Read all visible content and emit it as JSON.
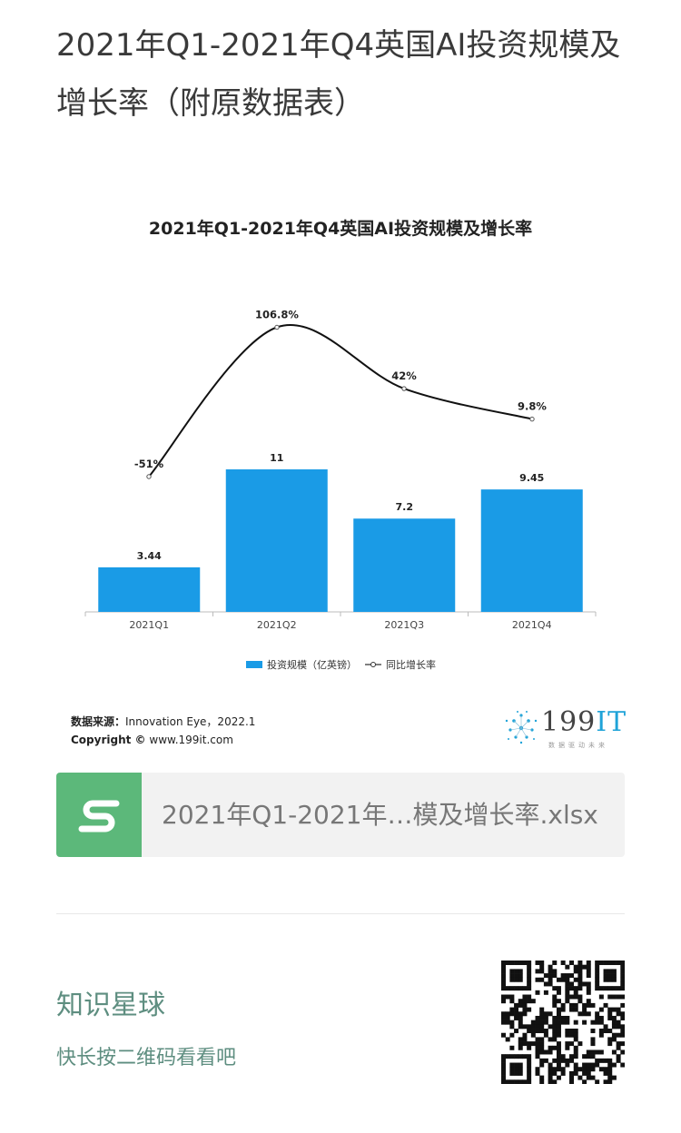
{
  "page": {
    "title": "2021年Q1-2021年Q4英国AI投资规模及增长率（附原数据表）"
  },
  "chart_data": {
    "type": "bar",
    "title": "2021年Q1-2021年Q4英国AI投资规模及增长率",
    "categories": [
      "2021Q1",
      "2021Q2",
      "2021Q3",
      "2021Q4"
    ],
    "series": [
      {
        "name": "投资规模（亿英镑）",
        "type": "bar",
        "values": [
          3.44,
          11,
          7.2,
          9.45
        ],
        "labels": [
          "3.44",
          "11",
          "7.2",
          "9.45"
        ],
        "color": "#1a9be6"
      },
      {
        "name": "同比增长率",
        "type": "line",
        "values": [
          -51,
          106.8,
          42,
          9.8
        ],
        "labels": [
          "-51%",
          "106.8%",
          "42%",
          "9.8%"
        ],
        "color": "#111111"
      }
    ],
    "legend_position": "bottom",
    "grid": false
  },
  "source": {
    "label": "数据来源：",
    "value": "Innovation Eye，2022.1",
    "copyright_label": "Copyright ©",
    "copyright_value": "www.199it.com"
  },
  "brand": {
    "name_num": "199",
    "name_it": "IT",
    "tagline": "数据驱动未来",
    "accent": "#1fa3d8"
  },
  "file": {
    "icon": "spreadsheet-s-icon",
    "name": "2021年Q1-2021年…模及增长率.xlsx",
    "color": "#5cb87a"
  },
  "planet": {
    "title": "知识星球",
    "subtitle": "快长按二维码看看吧",
    "color": "#5e8e80"
  }
}
